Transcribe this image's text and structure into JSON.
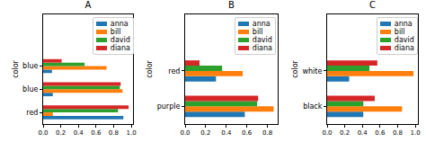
{
  "chart_data": [
    {
      "type": "bar",
      "title": "A",
      "orientation": "horizontal",
      "ylabel": "color",
      "categories": [
        "red",
        "blue",
        "blue"
      ],
      "series": [
        {
          "name": "anna",
          "color": "#1f77b4",
          "values": [
            0.91,
            0.11,
            0.1
          ]
        },
        {
          "name": "bill",
          "color": "#ff7f0e",
          "values": [
            0.11,
            0.9,
            0.72
          ]
        },
        {
          "name": "david",
          "color": "#2ca02c",
          "values": [
            0.85,
            0.87,
            0.47
          ]
        },
        {
          "name": "diana",
          "color": "#d62728",
          "values": [
            0.97,
            0.88,
            0.21
          ]
        }
      ],
      "xlim": [
        0,
        1.02
      ],
      "xticks": [
        {
          "value": 0,
          "label": "0.0"
        },
        0.2,
        0.4,
        0.6,
        0.8,
        {
          "value": 1,
          "label": "1.0"
        }
      ],
      "grid": false,
      "legend": "upper right"
    },
    {
      "type": "bar",
      "title": "B",
      "orientation": "horizontal",
      "ylabel": "color",
      "categories": [
        "purple",
        "red"
      ],
      "series": [
        {
          "name": "anna",
          "color": "#1f77b4",
          "values": [
            0.58,
            0.3
          ]
        },
        {
          "name": "bill",
          "color": "#ff7f0e",
          "values": [
            0.86,
            0.56
          ]
        },
        {
          "name": "david",
          "color": "#2ca02c",
          "values": [
            0.7,
            0.36
          ]
        },
        {
          "name": "diana",
          "color": "#d62728",
          "values": [
            0.71,
            0.14
          ]
        }
      ],
      "xlim": [
        0,
        0.9
      ],
      "xticks": [
        {
          "value": 0,
          "label": "0.0"
        },
        0.2,
        0.4,
        0.6,
        0.8
      ],
      "grid": false,
      "legend": "upper right"
    },
    {
      "type": "bar",
      "title": "C",
      "orientation": "horizontal",
      "ylabel": "color",
      "categories": [
        "black",
        "white"
      ],
      "series": [
        {
          "name": "anna",
          "color": "#1f77b4",
          "values": [
            0.41,
            0.25
          ]
        },
        {
          "name": "bill",
          "color": "#ff7f0e",
          "values": [
            0.85,
            0.98
          ]
        },
        {
          "name": "david",
          "color": "#2ca02c",
          "values": [
            0.41,
            0.48
          ]
        },
        {
          "name": "diana",
          "color": "#d62728",
          "values": [
            0.54,
            0.57
          ]
        }
      ],
      "xlim": [
        0,
        1.03
      ],
      "xticks": [
        {
          "value": 0,
          "label": "0.0"
        },
        0.2,
        0.4,
        0.6,
        0.8,
        {
          "value": 1,
          "label": "1.0"
        }
      ],
      "grid": false,
      "legend": "upper right"
    }
  ]
}
